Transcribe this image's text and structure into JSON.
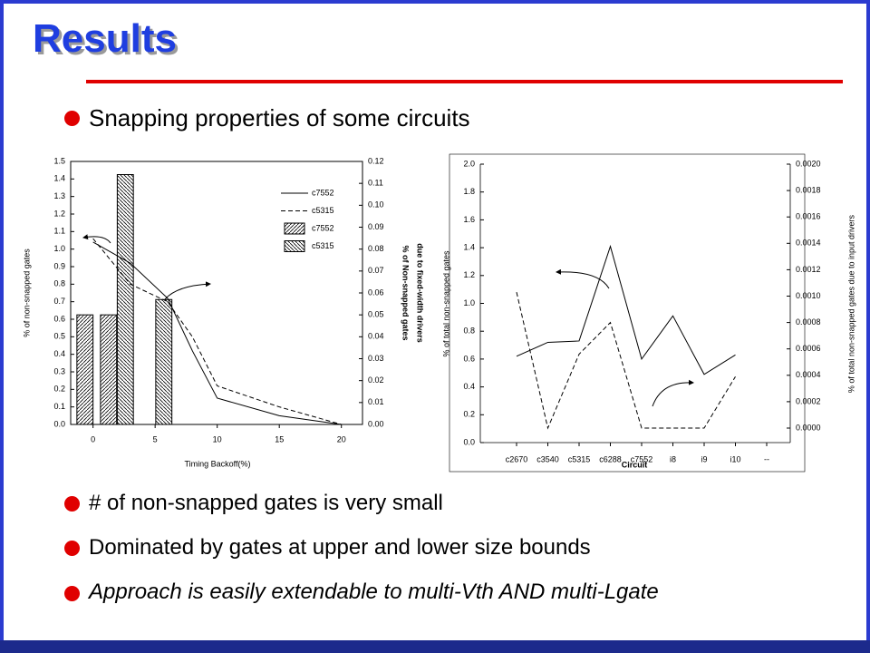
{
  "title": "Results",
  "bullets": [
    "Snapping properties of some circuits",
    "# of non-snapped gates is very small",
    "Dominated by gates at upper and lower size bounds",
    "Approach is easily extendable to multi-Vth AND multi-Lgate"
  ],
  "chart_data": [
    {
      "type": "line",
      "xlabel": "Timing Backoff(%)",
      "ylabel": "% of non-snapped gates",
      "y2label": [
        "% of Non-snapped gates",
        "due to fixed-width drivers"
      ],
      "xlim": [
        -1.8,
        21.7
      ],
      "xticks": [
        0,
        5,
        10,
        15,
        20
      ],
      "ylim": [
        0,
        1.5
      ],
      "yticks": [
        {
          "value": 0,
          "label": "0.0"
        },
        0.1,
        0.2,
        0.3,
        0.4,
        0.5,
        0.6,
        0.7,
        0.8,
        0.9,
        {
          "value": 1,
          "label": "1.0"
        },
        1.1,
        1.2,
        1.3,
        1.4,
        1.5
      ],
      "y2lim": [
        0,
        0.12
      ],
      "y2ticks": [
        {
          "value": 0,
          "label": "0.00"
        },
        0.01,
        0.02,
        0.03,
        0.04,
        0.05,
        0.06,
        0.07,
        0.08,
        0.09,
        {
          "value": 0.1,
          "label": "0.10"
        },
        0.11,
        0.12
      ],
      "legend": "upper right",
      "series": [
        {
          "name": "c7552",
          "type": "line",
          "style": "solid",
          "color": "#000000",
          "x": [
            0,
            3,
            6,
            8,
            10,
            15,
            20
          ],
          "values": [
            1.04,
            0.92,
            0.72,
            0.42,
            0.15,
            0.05,
            0
          ]
        },
        {
          "name": "c5315",
          "type": "line",
          "style": "dashed",
          "color": "#000000",
          "x": [
            0,
            3,
            6,
            8,
            10,
            15,
            20
          ],
          "values": [
            1.06,
            0.8,
            0.7,
            0.5,
            0.22,
            0.1,
            0
          ]
        },
        {
          "name": "c7552",
          "type": "bar",
          "hatch": "/",
          "axis": "y2",
          "color": "#000000",
          "x": [
            -0.65,
            1.25
          ],
          "values": [
            0.05,
            0.05
          ]
        },
        {
          "name": "c5315",
          "type": "bar",
          "hatch": "\\",
          "axis": "y2",
          "color": "#000000",
          "x": [
            2.6,
            5.7
          ],
          "values": [
            0.114,
            0.057
          ]
        }
      ]
    },
    {
      "type": "line",
      "xlabel": "Circuit",
      "ylabel": "% of total non-snapped gates",
      "y2label": [
        "% of total non-snapped gates due to input drivers"
      ],
      "categories": [
        "c2670",
        "c3540",
        "c5315",
        "c6288",
        "c7552",
        "i8",
        "i9",
        "i10",
        "--"
      ],
      "ylim": [
        0,
        2
      ],
      "yticks": [
        {
          "value": 0,
          "label": "0.0"
        },
        0.2,
        0.4,
        0.6,
        0.8,
        {
          "value": 1,
          "label": "1.0"
        },
        1.2,
        1.4,
        1.6,
        1.8,
        {
          "value": 2,
          "label": "2.0"
        }
      ],
      "y2lim": [
        -0.00011,
        0.002
      ],
      "y2ticks": [
        {
          "value": 0,
          "label": "0.0000"
        },
        {
          "value": 0.0002,
          "label": "0.0002"
        },
        {
          "value": 0.0004,
          "label": "0.0004"
        },
        {
          "value": 0.0006,
          "label": "0.0006"
        },
        {
          "value": 0.0008,
          "label": "0.0008"
        },
        {
          "value": 0.001,
          "label": "0.0010"
        },
        {
          "value": 0.0012,
          "label": "0.0012"
        },
        {
          "value": 0.0014,
          "label": "0.0014"
        },
        {
          "value": 0.0016,
          "label": "0.0016"
        },
        {
          "value": 0.0018,
          "label": "0.0018"
        },
        {
          "value": 0.002,
          "label": "0.0020"
        }
      ],
      "series": [
        {
          "type": "line",
          "style": "solid",
          "color": "#000000",
          "values": [
            0.62,
            0.72,
            0.73,
            1.41,
            0.6,
            0.91,
            0.49,
            0.63,
            null
          ]
        },
        {
          "type": "line",
          "style": "dashed",
          "color": "#000000",
          "axis": "y2",
          "values": [
            0.00103,
            0,
            0.00056,
            0.0008,
            0,
            0,
            0,
            0.00039,
            null
          ]
        }
      ]
    }
  ]
}
